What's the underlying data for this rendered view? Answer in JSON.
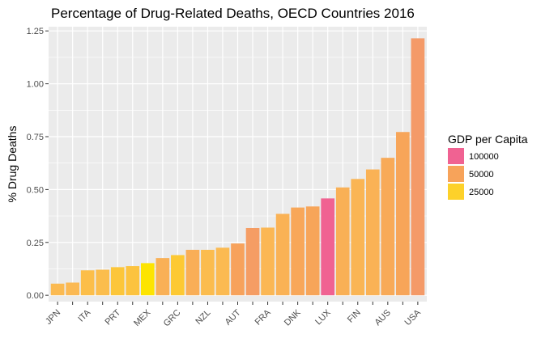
{
  "chart_data": {
    "type": "bar",
    "title": "Percentage of Drug-Related Deaths, OECD Countries 2016",
    "xlabel": "",
    "ylabel": "% Drug Deaths",
    "ylim": [
      -0.03,
      1.27
    ],
    "yticks": [
      0.0,
      0.25,
      0.5,
      0.75,
      1.0,
      1.25
    ],
    "ytick_labels": [
      "0.00",
      "0.25",
      "0.50",
      "0.75",
      "1.00",
      "1.25"
    ],
    "grid": true,
    "background": "#ebebeb",
    "categories": [
      "JPN",
      "",
      "ITA",
      "",
      "PRT",
      "",
      "MEX",
      "",
      "GRC",
      "",
      "NZL",
      "",
      "AUT",
      "",
      "FRA",
      "",
      "DNK",
      "",
      "LUX",
      "",
      "FIN",
      "",
      "AUS",
      "",
      "USA"
    ],
    "values": [
      0.055,
      0.06,
      0.118,
      0.121,
      0.133,
      0.138,
      0.152,
      0.176,
      0.19,
      0.215,
      0.215,
      0.225,
      0.245,
      0.318,
      0.32,
      0.385,
      0.415,
      0.42,
      0.458,
      0.51,
      0.55,
      0.595,
      0.65,
      0.772,
      1.215
    ],
    "gdp": [
      39000,
      40000,
      36000,
      37000,
      30000,
      32000,
      18000,
      44000,
      27000,
      45000,
      38000,
      39000,
      51000,
      55000,
      41000,
      43000,
      48000,
      49000,
      100000,
      44000,
      42000,
      43000,
      47000,
      49000,
      57000
    ],
    "legend": {
      "title": "GDP per Capita",
      "placement": "right",
      "entries": [
        {
          "label": "100000",
          "color": "#f06292"
        },
        {
          "label": "50000",
          "color": "#f7a35a"
        },
        {
          "label": "25000",
          "color": "#fdd12a"
        }
      ]
    },
    "color_scale": {
      "stops": [
        {
          "value": 18000,
          "color": "#fde400"
        },
        {
          "value": 25000,
          "color": "#fdcc2e"
        },
        {
          "value": 40000,
          "color": "#fbb953"
        },
        {
          "value": 50000,
          "color": "#f7a35a"
        },
        {
          "value": 57000,
          "color": "#f49a68"
        },
        {
          "value": 100000,
          "color": "#f06292"
        }
      ]
    }
  }
}
